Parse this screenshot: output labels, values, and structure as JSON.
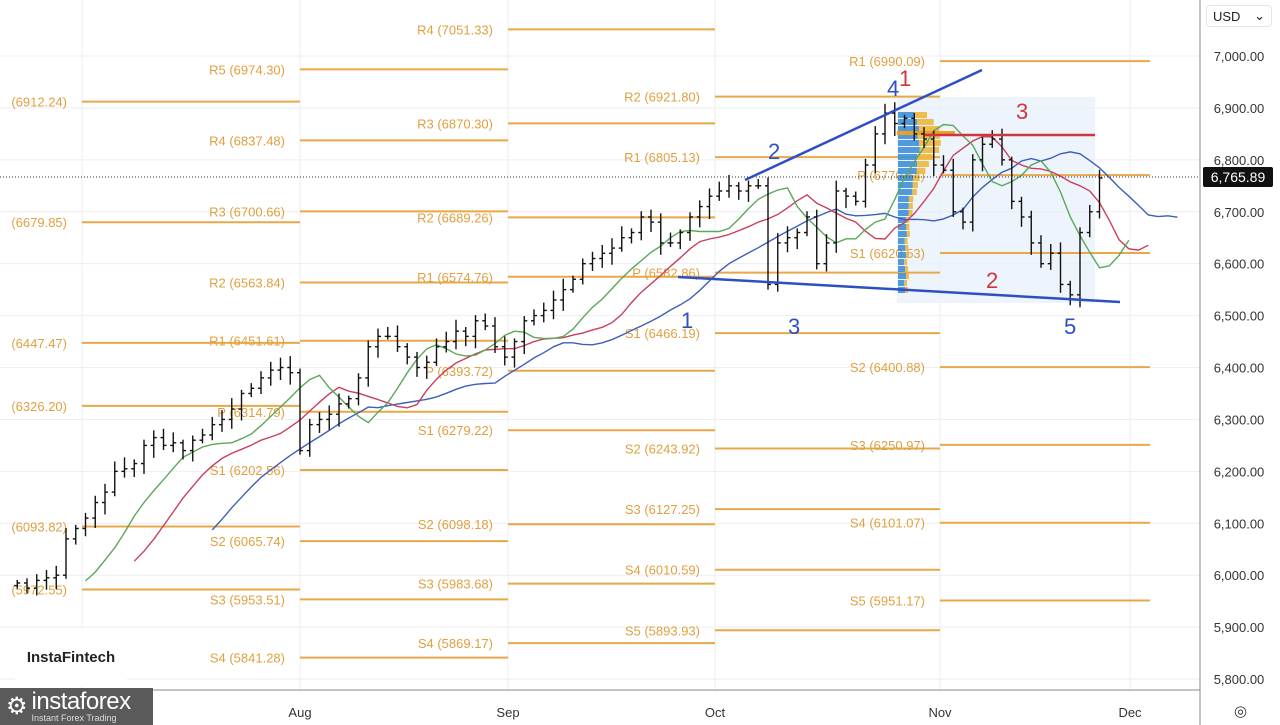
{
  "axis": {
    "currency": "USD",
    "price_ticks": [
      "7,000.00",
      "6,900.00",
      "6,800.00",
      "6,700.00",
      "6,600.00",
      "6,500.00",
      "6,400.00",
      "6,300.00",
      "6,200.00",
      "6,100.00",
      "6,000.00",
      "5,900.00",
      "5,800.00"
    ],
    "month_labels": [
      "Aug",
      "Sep",
      "Oct",
      "Nov",
      "Dec"
    ],
    "current_price": "6,765.89"
  },
  "branding": {
    "fintech": "InstaFintech",
    "instaforex": "instaforex",
    "instaforex_sub": "Instant Forex Trading"
  },
  "chart_data": {
    "type": "ohlc",
    "ylim": [
      5780,
      7080
    ],
    "current_price": 6765.89,
    "dates": [
      "06-20",
      "06-23",
      "06-24",
      "06-25",
      "06-26",
      "06-27",
      "06-30",
      "07-01",
      "07-02",
      "07-03",
      "07-07",
      "07-08",
      "07-09",
      "07-10",
      "07-11",
      "07-14",
      "07-15",
      "07-16",
      "07-17",
      "07-18",
      "07-21",
      "07-22",
      "07-23",
      "07-24",
      "07-25",
      "07-28",
      "07-29",
      "07-30",
      "07-31",
      "08-01",
      "08-04",
      "08-05",
      "08-06",
      "08-07",
      "08-08",
      "08-11",
      "08-12",
      "08-13",
      "08-14",
      "08-15",
      "08-18",
      "08-19",
      "08-20",
      "08-21",
      "08-22",
      "08-25",
      "08-26",
      "08-27",
      "08-28",
      "08-29",
      "09-02",
      "09-03",
      "09-04",
      "09-05",
      "09-08",
      "09-09",
      "09-10",
      "09-11",
      "09-12",
      "09-15",
      "09-16",
      "09-17",
      "09-18",
      "09-19",
      "09-22",
      "09-23",
      "09-24",
      "09-25",
      "09-26",
      "09-29",
      "09-30",
      "10-01",
      "10-02",
      "10-03",
      "10-06",
      "10-07",
      "10-08",
      "10-09",
      "10-10",
      "10-13",
      "10-14",
      "10-15",
      "10-16",
      "10-17",
      "10-20",
      "10-21",
      "10-22",
      "10-23",
      "10-24",
      "10-27",
      "10-28",
      "10-29",
      "10-30",
      "10-31",
      "11-03",
      "11-04",
      "11-05",
      "11-06",
      "11-07",
      "11-10",
      "11-11",
      "11-12",
      "11-13",
      "11-14",
      "11-17",
      "11-18",
      "11-19",
      "11-20",
      "11-21",
      "11-24",
      "11-25",
      "11-26"
    ],
    "close": [
      5985,
      5975,
      5990,
      5995,
      6000,
      6070,
      6090,
      6110,
      6140,
      6160,
      6200,
      6205,
      6215,
      6250,
      6265,
      6250,
      6255,
      6240,
      6260,
      6270,
      6290,
      6300,
      6320,
      6350,
      6360,
      6380,
      6395,
      6400,
      6390,
      6240,
      6290,
      6300,
      6310,
      6330,
      6340,
      6380,
      6440,
      6460,
      6460,
      6440,
      6420,
      6400,
      6410,
      6440,
      6450,
      6470,
      6460,
      6490,
      6480,
      6440,
      6420,
      6450,
      6490,
      6500,
      6510,
      6530,
      6550,
      6570,
      6600,
      6610,
      6620,
      6630,
      6650,
      6660,
      6690,
      6680,
      6640,
      6640,
      6660,
      6690,
      6710,
      6730,
      6740,
      6750,
      6740,
      6750,
      6750,
      6560,
      6640,
      6650,
      6660,
      6690,
      6600,
      6640,
      6740,
      6730,
      6720,
      6790,
      6850,
      6890,
      6870,
      6880,
      6850,
      6840,
      6790,
      6780,
      6700,
      6680,
      6800,
      6830,
      6840,
      6800,
      6720,
      6690,
      6640,
      6600,
      6620,
      6560,
      6540,
      6660,
      6700,
      6765
    ],
    "indicators": [
      {
        "type": "alligator-jaw",
        "color": "#3d5fb8"
      },
      {
        "type": "alligator-teeth",
        "color": "#c9405a"
      },
      {
        "type": "alligator-lips",
        "color": "#5aa85a"
      }
    ],
    "pivot_periods": [
      {
        "levels": [
          {
            "label": "(6912.24)",
            "value": 6912.24
          },
          {
            "label": "(6679.85)",
            "value": 6679.85
          },
          {
            "label": "(6447.47)",
            "value": 6447.47
          },
          {
            "label": "(6326.20)",
            "value": 6326.2
          },
          {
            "label": "(6093.82)",
            "value": 6093.82
          },
          {
            "label": "(5972.55)",
            "value": 5972.55
          }
        ]
      },
      {
        "levels": [
          {
            "label": "R5 (6974.30)",
            "value": 6974.3
          },
          {
            "label": "R4 (6837.48)",
            "value": 6837.48
          },
          {
            "label": "R3 (6700.66)",
            "value": 6700.66
          },
          {
            "label": "R2 (6563.84)",
            "value": 6563.84
          },
          {
            "label": "R1 (6451.61)",
            "value": 6451.61
          },
          {
            "label": "P (6314.79)",
            "value": 6314.79
          },
          {
            "label": "S1 (6202.56)",
            "value": 6202.56
          },
          {
            "label": "S2 (6065.74)",
            "value": 6065.74
          },
          {
            "label": "S3 (5953.51)",
            "value": 5953.51
          },
          {
            "label": "S4 (5841.28)",
            "value": 5841.28
          }
        ]
      },
      {
        "levels": [
          {
            "label": "R4 (7051.33)",
            "value": 7051.33
          },
          {
            "label": "R3 (6870.30)",
            "value": 6870.3
          },
          {
            "label": "R2 (6689.26)",
            "value": 6689.26
          },
          {
            "label": "R1 (6574.76)",
            "value": 6574.76
          },
          {
            "label": "P (6393.72)",
            "value": 6393.72
          },
          {
            "label": "S1 (6279.22)",
            "value": 6279.22
          },
          {
            "label": "S2 (6098.18)",
            "value": 6098.18
          },
          {
            "label": "S3 (5983.68)",
            "value": 5983.68
          },
          {
            "label": "S4 (5869.17)",
            "value": 5869.17
          }
        ]
      },
      {
        "levels": [
          {
            "label": "R2 (6921.80)",
            "value": 6921.8
          },
          {
            "label": "R1 (6805.13)",
            "value": 6805.13
          },
          {
            "label": "P (6582.86)",
            "value": 6582.86
          },
          {
            "label": "S1 (6466.19)",
            "value": 6466.19
          },
          {
            "label": "S2 (6243.92)",
            "value": 6243.92
          },
          {
            "label": "S3 (6127.25)",
            "value": 6127.25
          },
          {
            "label": "S4 (6010.59)",
            "value": 6010.59
          },
          {
            "label": "S5 (5893.93)",
            "value": 5893.93
          }
        ]
      },
      {
        "levels": [
          {
            "label": "R1 (6990.09)",
            "value": 6990.09
          },
          {
            "label": "P (6770.54)",
            "value": 6770.54
          },
          {
            "label": "S1 (6620.53)",
            "value": 6620.53
          },
          {
            "label": "S2 (6400.88)",
            "value": 6400.88
          },
          {
            "label": "S3 (6250.97)",
            "value": 6250.97
          },
          {
            "label": "S4 (6101.07)",
            "value": 6101.07
          },
          {
            "label": "S5 (5951.17)",
            "value": 5951.17
          }
        ]
      }
    ],
    "annotations": {
      "wave_labels_blue": [
        "1",
        "2",
        "3",
        "4",
        "5"
      ],
      "wave_labels_red": [
        "1",
        "2",
        "3"
      ],
      "colors": {
        "blue": "#2d4fc4",
        "red": "#d0343d",
        "pivot": "#e8a848",
        "profile_blue": "#3d8fd8",
        "profile_yellow": "#f0b63a"
      }
    }
  }
}
